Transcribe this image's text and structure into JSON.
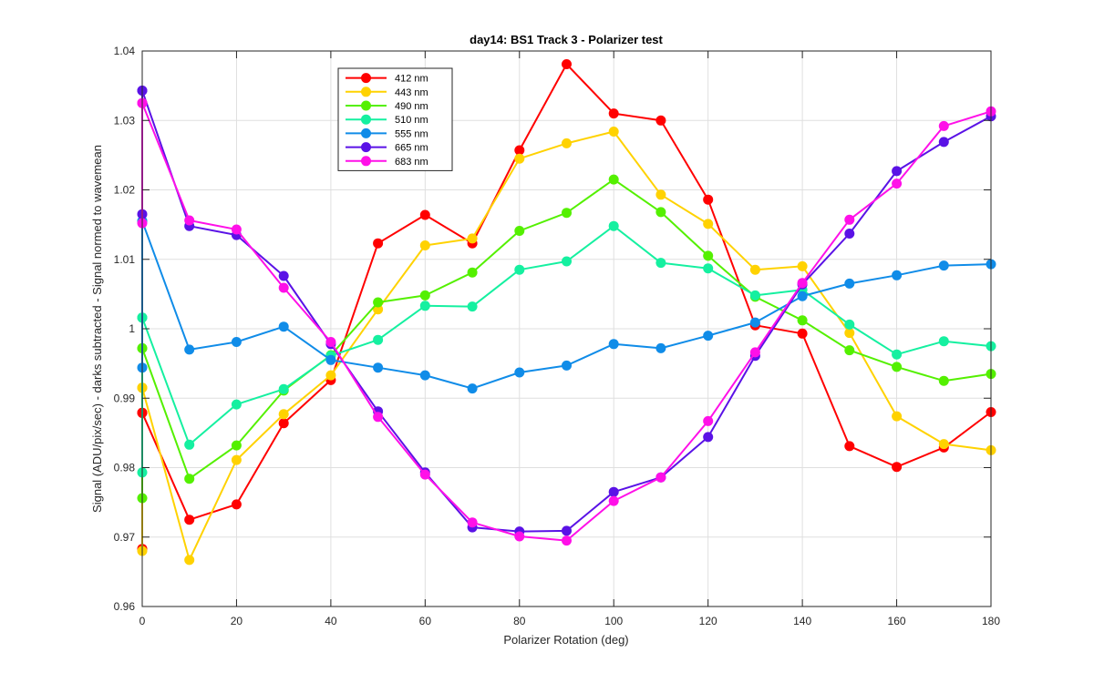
{
  "chart_data": {
    "type": "line",
    "title": "day14: BS1  Track 3 - Polarizer test",
    "xlabel": "Polarizer Rotation (deg)",
    "ylabel": "Signal (ADU/pix/sec) - darks subtracted - Signal normed to wavemean",
    "xlim": [
      0,
      180
    ],
    "ylim": [
      0.96,
      1.04
    ],
    "grid": true,
    "legend_position": "top-left",
    "xticks": [
      0,
      20,
      40,
      60,
      80,
      100,
      120,
      140,
      160,
      180
    ],
    "yticks": [
      0.96,
      0.97,
      0.98,
      0.99,
      1,
      1.01,
      1.02,
      1.03,
      1.04
    ],
    "xtick_labels": [
      "0",
      "20",
      "40",
      "60",
      "80",
      "100",
      "120",
      "140",
      "160",
      "180"
    ],
    "ytick_labels": [
      "0.96",
      "0.97",
      "0.98",
      "0.99",
      "1",
      "1.01",
      "1.02",
      "1.03",
      "1.04"
    ],
    "x": [
      0,
      0,
      0,
      10,
      20,
      30,
      40,
      50,
      60,
      70,
      80,
      90,
      100,
      110,
      120,
      130,
      140,
      150,
      160,
      170,
      180
    ],
    "series": [
      {
        "name": "412 nm",
        "color": "#ff0000",
        "values": [
          0.9879,
          0.9683,
          0.9879,
          0.9725,
          0.9747,
          0.9864,
          0.9926,
          1.0123,
          1.0164,
          1.0123,
          1.0257,
          1.0381,
          1.031,
          1.03,
          1.0186,
          1.0005,
          0.9993,
          0.9831,
          0.9801,
          0.9829,
          0.988
        ]
      },
      {
        "name": "443 nm",
        "color": "#ffd200",
        "values": [
          0.9915,
          0.968,
          0.9915,
          0.9667,
          0.9811,
          0.9877,
          0.9933,
          1.0028,
          1.012,
          1.013,
          1.0245,
          1.0267,
          1.0284,
          1.0193,
          1.0151,
          1.0085,
          1.009,
          0.9994,
          0.9874,
          0.9834,
          0.9825
        ]
      },
      {
        "name": "490 nm",
        "color": "#54f000",
        "values": [
          0.9972,
          0.9756,
          0.9972,
          0.9784,
          0.9832,
          0.9911,
          0.9962,
          1.0038,
          1.0048,
          1.0081,
          1.0141,
          1.0167,
          1.0215,
          1.0168,
          1.0105,
          1.0046,
          1.0012,
          0.9969,
          0.9945,
          0.9925,
          0.9935
        ]
      },
      {
        "name": "510 nm",
        "color": "#15f0a0",
        "values": [
          1.0016,
          0.9793,
          1.0016,
          0.9833,
          0.9891,
          0.9913,
          0.9961,
          0.9984,
          1.0033,
          1.0032,
          1.0085,
          1.0097,
          1.0148,
          1.0095,
          1.0087,
          1.0048,
          1.0056,
          1.0006,
          0.9963,
          0.9982,
          0.9975
        ]
      },
      {
        "name": "555 nm",
        "color": "#108ce8",
        "values": [
          1.0155,
          0.9944,
          1.0155,
          0.997,
          0.9981,
          1.0003,
          0.9955,
          0.9944,
          0.9933,
          0.9914,
          0.9937,
          0.9947,
          0.9978,
          0.9972,
          0.999,
          1.0009,
          1.0047,
          1.0065,
          1.0077,
          1.0091,
          1.0093
        ]
      },
      {
        "name": "665 nm",
        "color": "#5a12e6",
        "values": [
          1.0343,
          1.0165,
          1.0343,
          1.0148,
          1.0135,
          1.0076,
          0.9978,
          0.9881,
          0.9793,
          0.9714,
          0.9708,
          0.9709,
          0.9765,
          0.9786,
          0.9844,
          0.9961,
          1.0064,
          1.0137,
          1.0227,
          1.0269,
          1.0306
        ]
      },
      {
        "name": "683 nm",
        "color": "#ff10e8",
        "values": [
          1.0325,
          1.0152,
          1.0325,
          1.0156,
          1.0143,
          1.0059,
          0.9981,
          0.9873,
          0.979,
          0.9721,
          0.9701,
          0.9695,
          0.9752,
          0.9786,
          0.9867,
          0.9966,
          1.0066,
          1.0157,
          1.0209,
          1.0292,
          1.0313
        ]
      }
    ]
  }
}
